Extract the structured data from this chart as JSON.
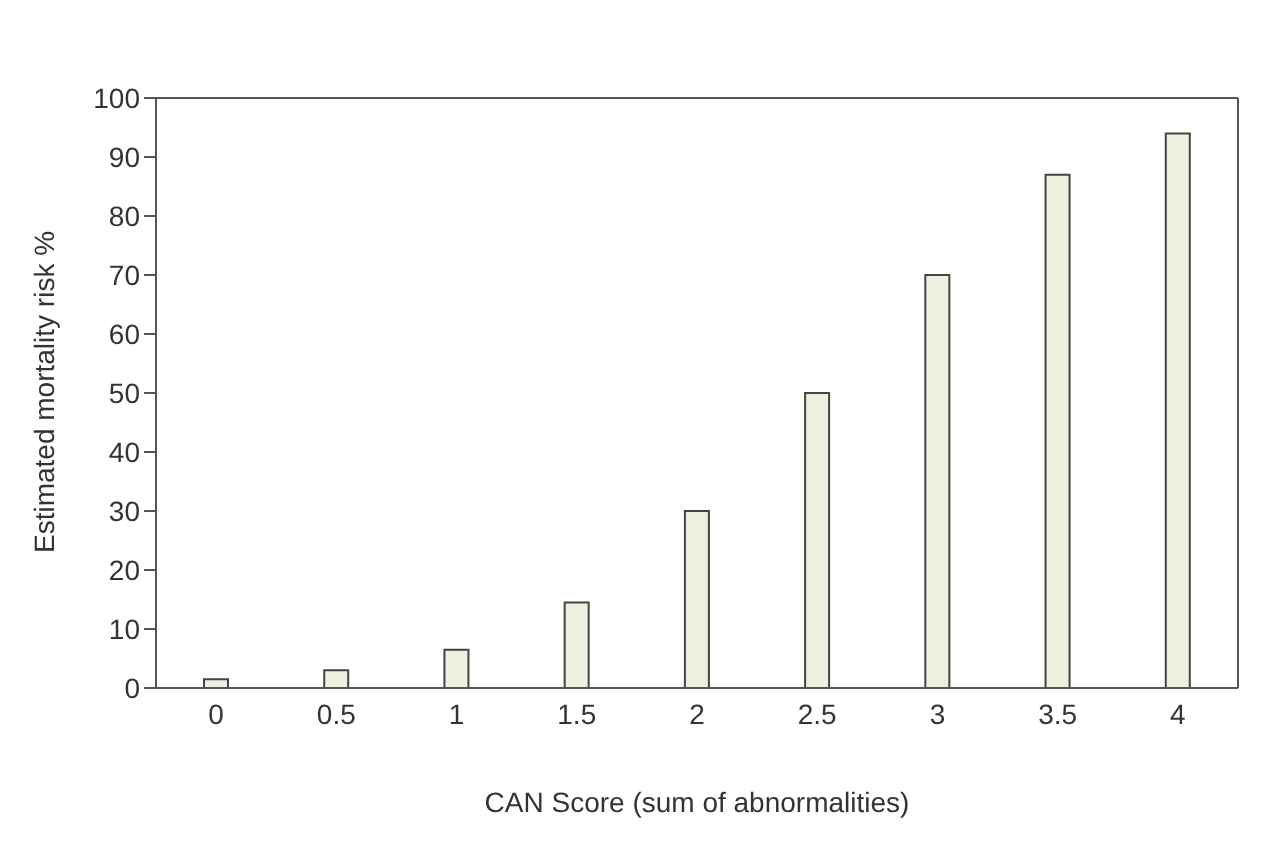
{
  "chart_data": {
    "type": "bar",
    "xlabel": "CAN Score (sum of abnormalities)",
    "ylabel": "Estimated mortality risk %",
    "categories": [
      "0",
      "0.5",
      "1",
      "1.5",
      "2",
      "2.5",
      "3",
      "3.5",
      "4"
    ],
    "values": [
      1.5,
      3,
      6.5,
      14.5,
      30,
      50,
      70,
      87,
      94
    ],
    "color": "#efefdf",
    "ylim": [
      0,
      100
    ],
    "yticks": [
      0,
      10,
      20,
      30,
      40,
      50,
      60,
      70,
      80,
      90,
      100
    ],
    "grid": false
  }
}
